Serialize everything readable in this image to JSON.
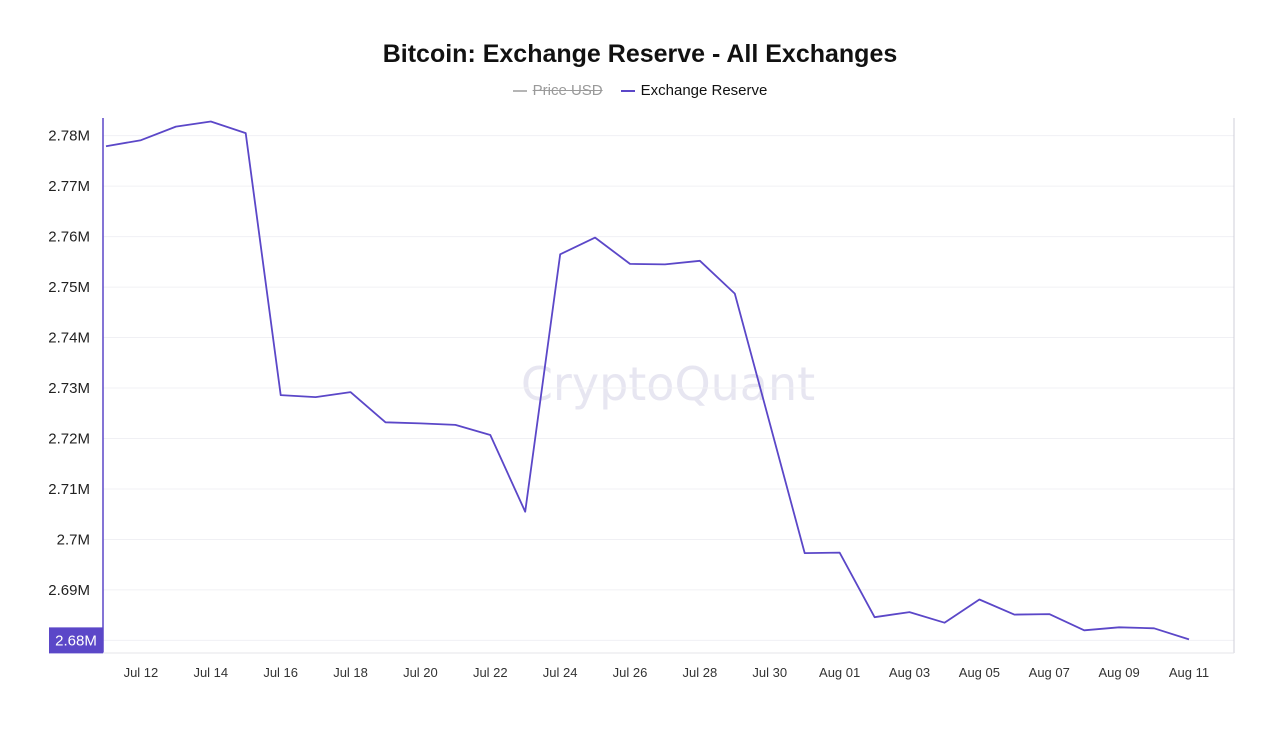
{
  "watermark": "CryptoQuant",
  "colors": {
    "accent": "#5b47c8",
    "grid": "#f0f0f4",
    "muted": "#9a9a9a"
  },
  "legend": [
    {
      "name": "Price USD",
      "hidden": true,
      "color": "#9a9a9a"
    },
    {
      "name": "Exchange Reserve",
      "hidden": false,
      "color": "#5b47c8"
    }
  ],
  "cursor_label": "2.68M",
  "chart_data": {
    "type": "line",
    "title": "Bitcoin: Exchange Reserve - All Exchanges",
    "xlabel": "",
    "ylabel": "",
    "ylim": [
      2.6775,
      2.7835
    ],
    "yticks": [
      2.68,
      2.69,
      2.7,
      2.71,
      2.72,
      2.73,
      2.74,
      2.75,
      2.76,
      2.77,
      2.78
    ],
    "ytick_labels": [
      "2.68M",
      "2.69M",
      "2.7M",
      "2.71M",
      "2.72M",
      "2.73M",
      "2.74M",
      "2.75M",
      "2.76M",
      "2.77M",
      "2.78M"
    ],
    "x": [
      "Jul 11",
      "Jul 12",
      "Jul 13",
      "Jul 14",
      "Jul 15",
      "Jul 16",
      "Jul 17",
      "Jul 18",
      "Jul 19",
      "Jul 20",
      "Jul 21",
      "Jul 22",
      "Jul 23",
      "Jul 24",
      "Jul 25",
      "Jul 26",
      "Jul 27",
      "Jul 28",
      "Jul 29",
      "Jul 30",
      "Jul 31",
      "Aug 01",
      "Aug 02",
      "Aug 03",
      "Aug 04",
      "Aug 05",
      "Aug 06",
      "Aug 07",
      "Aug 08",
      "Aug 09",
      "Aug 10",
      "Aug 11"
    ],
    "xtick_labels": [
      "Jul 12",
      "Jul 14",
      "Jul 16",
      "Jul 18",
      "Jul 20",
      "Jul 22",
      "Jul 24",
      "Jul 26",
      "Jul 28",
      "Jul 30",
      "Aug 01",
      "Aug 03",
      "Aug 05",
      "Aug 07",
      "Aug 09",
      "Aug 11"
    ],
    "series": [
      {
        "name": "Exchange Reserve",
        "values": [
          2.7779,
          2.7791,
          2.7818,
          2.7828,
          2.7805,
          2.7286,
          2.7282,
          2.7292,
          2.7232,
          2.723,
          2.7227,
          2.7207,
          2.7055,
          2.7565,
          2.7598,
          2.7546,
          2.7545,
          2.7552,
          2.7487,
          2.723,
          2.6973,
          2.6974,
          2.6846,
          2.6856,
          2.6835,
          2.6881,
          2.6851,
          2.6852,
          2.682,
          2.6826,
          2.6824,
          2.6802
        ]
      }
    ]
  }
}
